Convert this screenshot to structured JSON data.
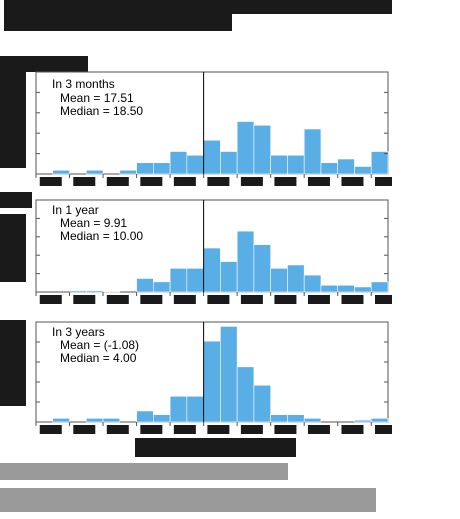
{
  "colors": {
    "bar_fill": "#5aaee6",
    "bar_stroke": "#ffffff",
    "axis": "#555555",
    "zero_line": "#000000",
    "redaction": "#1a1a1a",
    "redaction_grey": "#9a9a9a"
  },
  "chart_data": [
    {
      "type": "bar",
      "panel_title": "In 3 months",
      "mean_text": "Mean = 17.51",
      "median_text": "Median = 18.50",
      "bin_start": -50,
      "bin_width": 5,
      "xlim": [
        -50,
        55
      ],
      "ylim": [
        0,
        16
      ],
      "grid": false,
      "values": [
        0,
        1,
        0,
        1,
        0,
        1,
        3,
        3,
        6,
        5,
        9,
        6,
        14,
        13,
        5,
        5,
        12,
        3,
        4,
        2,
        6
      ]
    },
    {
      "type": "bar",
      "panel_title": "In 1 year",
      "mean_text": "Mean = 9.91",
      "median_text": "Median = 10.00",
      "bin_start": -50,
      "bin_width": 5,
      "xlim": [
        -50,
        55
      ],
      "ylim": [
        0,
        16
      ],
      "grid": false,
      "values": [
        0,
        0,
        0.4,
        0.4,
        0.2,
        0,
        4,
        3,
        7,
        7,
        13,
        9,
        18,
        14,
        7,
        8,
        5,
        2,
        2,
        1.5,
        3
      ]
    },
    {
      "type": "bar",
      "panel_title": "In 3 years",
      "mean_text": "Mean = (-1.08)",
      "median_text": "Median = 4.00",
      "bin_start": -50,
      "bin_width": 5,
      "xlim": [
        -50,
        55
      ],
      "ylim": [
        0,
        16
      ],
      "grid": false,
      "values": [
        0,
        1,
        0,
        1,
        1,
        0,
        3,
        2,
        7,
        7,
        22,
        26,
        15,
        10,
        2,
        2,
        1,
        0,
        0,
        0.5,
        1
      ]
    }
  ]
}
